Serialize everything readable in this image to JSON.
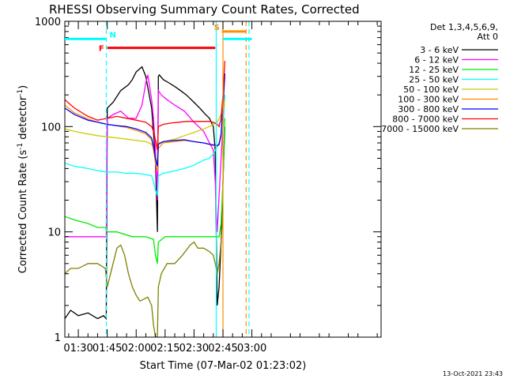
{
  "chart_data": {
    "type": "line",
    "title": "RHESSI Observing Summary Count Rates, Corrected",
    "xlabel": "Start Time (07-Mar-02 01:23:02)",
    "ylabel": "Corrected Count Rate (s⁻¹ detector⁻¹)",
    "ylabel_main": "Corrected Count Rate (s",
    "ylabel_sup1": "-1",
    "ylabel_mid": " detector",
    "ylabel_sup2": "-1",
    "ylabel_end": ")",
    "y_scale": "log",
    "xlim": [
      83,
      247
    ],
    "ylim": [
      1,
      1000
    ],
    "x_ticks": [
      {
        "value": 90,
        "label": "01:30"
      },
      {
        "value": 105,
        "label": "01:45"
      },
      {
        "value": 120,
        "label": "02:00"
      },
      {
        "value": 135,
        "label": "02:15"
      },
      {
        "value": 150,
        "label": "02:30"
      },
      {
        "value": 165,
        "label": "02:45"
      },
      {
        "value": 180,
        "label": "03:00"
      }
    ],
    "y_ticks": [
      {
        "value": 1,
        "label": "1"
      },
      {
        "value": 10,
        "label": "10"
      },
      {
        "value": 100,
        "label": "100"
      },
      {
        "value": 1000,
        "label": "1000"
      }
    ],
    "legend_header": [
      "Det 1,3,4,5,6,9,",
      "Att 0"
    ],
    "legend_position": "right",
    "series": [
      {
        "name": "3 - 6 keV",
        "color": "#000000",
        "x": [
          83,
          86,
          90,
          95,
          100,
          103,
          104.5,
          105,
          108,
          112,
          116,
          118,
          120,
          123,
          125,
          128,
          130,
          131,
          131.5,
          132,
          134,
          137,
          140,
          143,
          146,
          150,
          153,
          156,
          158,
          160,
          161,
          161.5,
          162,
          163,
          164,
          165,
          166
        ],
        "y": [
          1.5,
          1.8,
          1.6,
          1.7,
          1.5,
          1.6,
          1.5,
          150,
          170,
          220,
          250,
          280,
          330,
          370,
          300,
          150,
          50,
          10,
          300,
          310,
          280,
          260,
          240,
          220,
          200,
          170,
          150,
          130,
          120,
          100,
          60,
          10,
          2,
          3,
          8,
          30,
          100
        ]
      },
      {
        "name": "6 - 12 keV",
        "color": "#ff00ff",
        "x": [
          83,
          86,
          90,
          95,
          100,
          103,
          104.5,
          105,
          108,
          112,
          116,
          120,
          123,
          125,
          126,
          127,
          128,
          129,
          130,
          131,
          131.5,
          133,
          136,
          140,
          145,
          150,
          155,
          158,
          160,
          161,
          162,
          164,
          166
        ],
        "y": [
          9,
          9,
          9,
          9,
          9,
          9,
          9,
          120,
          130,
          140,
          120,
          120,
          160,
          260,
          310,
          240,
          180,
          120,
          60,
          20,
          220,
          200,
          180,
          160,
          140,
          110,
          90,
          70,
          60,
          30,
          10,
          50,
          200
        ]
      },
      {
        "name": "12 - 25 keV",
        "color": "#00ee00",
        "x": [
          83,
          88,
          95,
          100,
          104,
          105,
          110,
          118,
          125,
          129,
          130,
          131,
          131.5,
          135,
          142,
          150,
          156,
          158,
          160,
          162,
          163,
          164,
          165,
          166
        ],
        "y": [
          14,
          13,
          12,
          11,
          11,
          10,
          10,
          9,
          9,
          8.5,
          6,
          5,
          8,
          9,
          9,
          9,
          9,
          9,
          9,
          9,
          9,
          12,
          30,
          120
        ]
      },
      {
        "name": "25 - 50 keV",
        "color": "#00ffff",
        "x": [
          83,
          88,
          95,
          100,
          105,
          110,
          115,
          120,
          125,
          128,
          129,
          130,
          131,
          131.5,
          134,
          140,
          145,
          150,
          155,
          158,
          160,
          162,
          163,
          164,
          165,
          166
        ],
        "y": [
          45,
          42,
          40,
          38,
          37,
          37,
          36,
          36,
          35,
          34,
          30,
          25,
          22,
          34,
          36,
          38,
          40,
          43,
          48,
          50,
          55,
          65,
          70,
          80,
          100,
          200
        ]
      },
      {
        "name": "50 - 100 keV",
        "color": "#cccc00",
        "x": [
          83,
          88,
          95,
          100,
          105,
          110,
          115,
          120,
          125,
          128,
          129,
          130,
          131,
          131.5,
          134,
          140,
          145,
          150,
          155,
          158,
          160,
          162,
          163,
          164,
          165,
          166
        ],
        "y": [
          95,
          90,
          85,
          82,
          80,
          78,
          76,
          74,
          72,
          68,
          62,
          52,
          45,
          70,
          72,
          76,
          82,
          88,
          95,
          100,
          105,
          110,
          120,
          130,
          140,
          180
        ]
      },
      {
        "name": "100 - 300 keV",
        "color": "#ff8c00",
        "x": [
          83,
          88,
          95,
          100,
          105,
          110,
          115,
          120,
          125,
          128,
          129,
          130,
          131,
          131.5,
          134,
          140,
          145,
          150,
          155,
          158,
          160,
          162,
          163,
          164,
          165,
          166
        ],
        "y": [
          160,
          135,
          118,
          110,
          105,
          102,
          98,
          92,
          85,
          75,
          60,
          45,
          38,
          62,
          70,
          72,
          74,
          72,
          70,
          68,
          66,
          65,
          67,
          80,
          150,
          300
        ]
      },
      {
        "name": "300 - 800 keV",
        "color": "#0000ff",
        "x": [
          83,
          88,
          95,
          100,
          105,
          110,
          115,
          120,
          125,
          128,
          129,
          130,
          131,
          131.5,
          134,
          140,
          145,
          150,
          155,
          158,
          160,
          162,
          163,
          164,
          165,
          166
        ],
        "y": [
          150,
          130,
          115,
          110,
          105,
          102,
          100,
          95,
          88,
          78,
          65,
          50,
          42,
          68,
          72,
          74,
          75,
          72,
          70,
          68,
          67,
          66,
          68,
          85,
          160,
          320
        ]
      },
      {
        "name": "800 - 7000 keV",
        "color": "#ff0000",
        "x": [
          83,
          88,
          95,
          100,
          105,
          110,
          115,
          120,
          125,
          128,
          129,
          130,
          131,
          131.5,
          134,
          138,
          142,
          146,
          150,
          155,
          158,
          160,
          162,
          163,
          164,
          165,
          166
        ],
        "y": [
          180,
          150,
          125,
          115,
          120,
          125,
          120,
          115,
          110,
          100,
          90,
          75,
          60,
          100,
          105,
          108,
          110,
          112,
          112,
          112,
          112,
          110,
          105,
          100,
          120,
          200,
          420
        ]
      },
      {
        "name": "7000 - 15000 keV",
        "color": "#808000",
        "x": [
          83,
          86,
          90,
          95,
          100,
          104,
          105,
          108,
          110,
          112,
          114,
          116,
          118,
          120,
          122,
          124,
          126,
          128,
          129,
          130,
          131,
          131.5,
          133,
          136,
          140,
          144,
          148,
          150,
          152,
          155,
          158,
          160,
          161,
          162,
          163,
          164,
          165
        ],
        "y": [
          4,
          4.5,
          4.5,
          5,
          5,
          4.5,
          3,
          5,
          7,
          7.5,
          6,
          4,
          3,
          2.5,
          2.2,
          2.3,
          2.4,
          2,
          1.3,
          1,
          1,
          3,
          4,
          5,
          5,
          6,
          7.5,
          8,
          7,
          7,
          6.5,
          6,
          5,
          4,
          5,
          8,
          15
        ]
      }
    ],
    "annotations": [
      {
        "label": "F",
        "color": "#ff0000",
        "x_start": 105,
        "x_end": 161,
        "level": 560
      },
      {
        "label": "N",
        "color": "#00ffff",
        "x_start": 83,
        "x_end": 104.5,
        "level": 680
      },
      {
        "label": "S",
        "color": "#ff8c00",
        "x_start": 164.5,
        "x_end": 177,
        "level": 800
      }
    ],
    "vertical_markers": [
      {
        "x": 104.5,
        "color": "#00ffff",
        "dashed": true
      },
      {
        "x": 161.5,
        "color": "#00ffff",
        "dashed": false
      },
      {
        "x": 165,
        "color": "#ff8c00",
        "dashed": false
      },
      {
        "x": 177,
        "color": "#ff8c00",
        "dashed": true
      },
      {
        "x": 178.5,
        "color": "#00ffff",
        "dashed": true
      }
    ],
    "cyan_bar_right": {
      "x_start": 165,
      "x_end": 180,
      "level": 680
    },
    "footer": "13-Oct-2021 23:43"
  }
}
